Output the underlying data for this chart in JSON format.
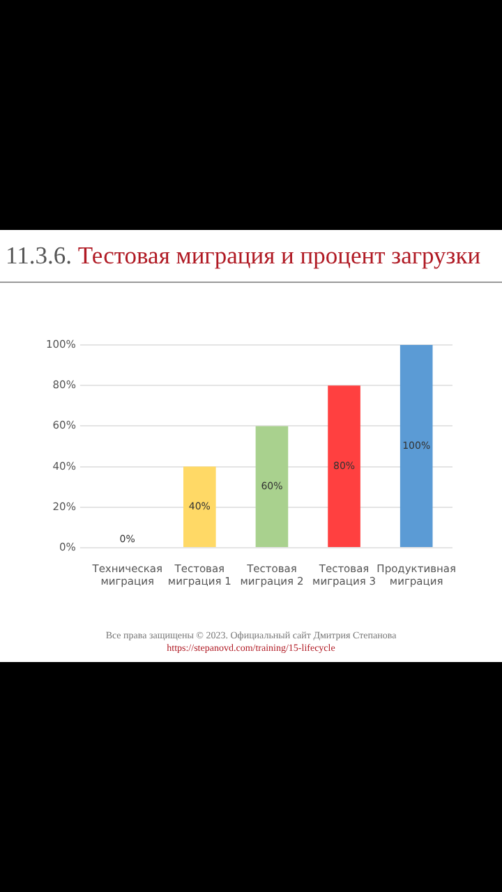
{
  "chart_data": {
    "type": "bar",
    "title": "11.3.6. Тестовая миграция и процент загрузки",
    "categories": [
      "Техническая миграция",
      "Тестовая миграция 1",
      "Тестовая миграция 2",
      "Тестовая миграция 3",
      "Продуктивная миграция"
    ],
    "values": [
      0,
      40,
      60,
      80,
      100
    ],
    "colors": [
      "#5b9bd5",
      "#ffd966",
      "#a9d18e",
      "#ff4040",
      "#5b9bd5"
    ],
    "ylim": [
      0,
      100
    ],
    "yticks": [
      {
        "value": 0,
        "label": "0%"
      },
      {
        "value": 20,
        "label": "20%"
      },
      {
        "value": 40,
        "label": "40%"
      },
      {
        "value": 60,
        "label": "60%"
      },
      {
        "value": 80,
        "label": "80%"
      },
      {
        "value": 100,
        "label": "100%"
      }
    ],
    "value_labels": [
      "0%",
      "40%",
      "60%",
      "80%",
      "100%"
    ],
    "grid": "y",
    "legend": false,
    "annotations": [
      "Все права защищены © 2023. Официальный сайт Дмитрия Степанова",
      "https://stepanovd.com/training/15-lifecycle"
    ]
  }
}
